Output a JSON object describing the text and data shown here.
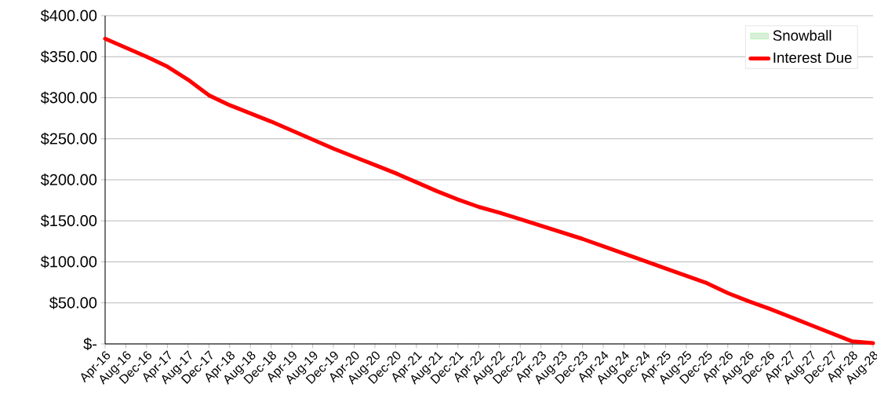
{
  "chart_data": {
    "type": "line",
    "categories": [
      "Apr-16",
      "Aug-16",
      "Dec-16",
      "Apr-17",
      "Aug-17",
      "Dec-17",
      "Apr-18",
      "Aug-18",
      "Dec-18",
      "Apr-19",
      "Aug-19",
      "Dec-19",
      "Apr-20",
      "Aug-20",
      "Dec-20",
      "Apr-21",
      "Aug-21",
      "Dec-21",
      "Apr-22",
      "Aug-22",
      "Dec-22",
      "Apr-23",
      "Aug-23",
      "Dec-23",
      "Apr-24",
      "Aug-24",
      "Dec-24",
      "Apr-25",
      "Aug-25",
      "Dec-25",
      "Apr-26",
      "Aug-26",
      "Dec-26",
      "Apr-27",
      "Aug-27",
      "Dec-27",
      "Apr-28",
      "Aug-28"
    ],
    "series": [
      {
        "name": "Snowball",
        "type": "area",
        "color": "#d9efd9",
        "values": [
          null,
          null,
          null,
          null,
          null,
          null,
          null,
          null,
          null,
          null,
          null,
          null,
          null,
          null,
          null,
          null,
          null,
          null,
          null,
          null,
          null,
          null,
          null,
          null,
          null,
          null,
          null,
          null,
          null,
          null,
          null,
          null,
          null,
          null,
          null,
          null,
          null,
          null
        ]
      },
      {
        "name": "Interest Due",
        "color": "#ff0000",
        "values": [
          372,
          361,
          350,
          338,
          322,
          303,
          291,
          281,
          271,
          260,
          249,
          238,
          228,
          218,
          208,
          197,
          186,
          176,
          167,
          160,
          152,
          144,
          136,
          128,
          119,
          110,
          101,
          92,
          83,
          74,
          62,
          52,
          43,
          33,
          23,
          13,
          3,
          1
        ]
      }
    ],
    "ylim": [
      0,
      400
    ],
    "yticks": [
      {
        "value": 0,
        "label": "$-"
      },
      {
        "value": 50,
        "label": "$50.00"
      },
      {
        "value": 100,
        "label": "$100.00"
      },
      {
        "value": 150,
        "label": "$150.00"
      },
      {
        "value": 200,
        "label": "$200.00"
      },
      {
        "value": 250,
        "label": "$250.00"
      },
      {
        "value": 300,
        "label": "$300.00"
      },
      {
        "value": 350,
        "label": "$350.00"
      },
      {
        "value": 400,
        "label": "$400.00"
      }
    ],
    "grid": "y",
    "legend": "top right",
    "marker": "none",
    "line_style": "solid"
  }
}
